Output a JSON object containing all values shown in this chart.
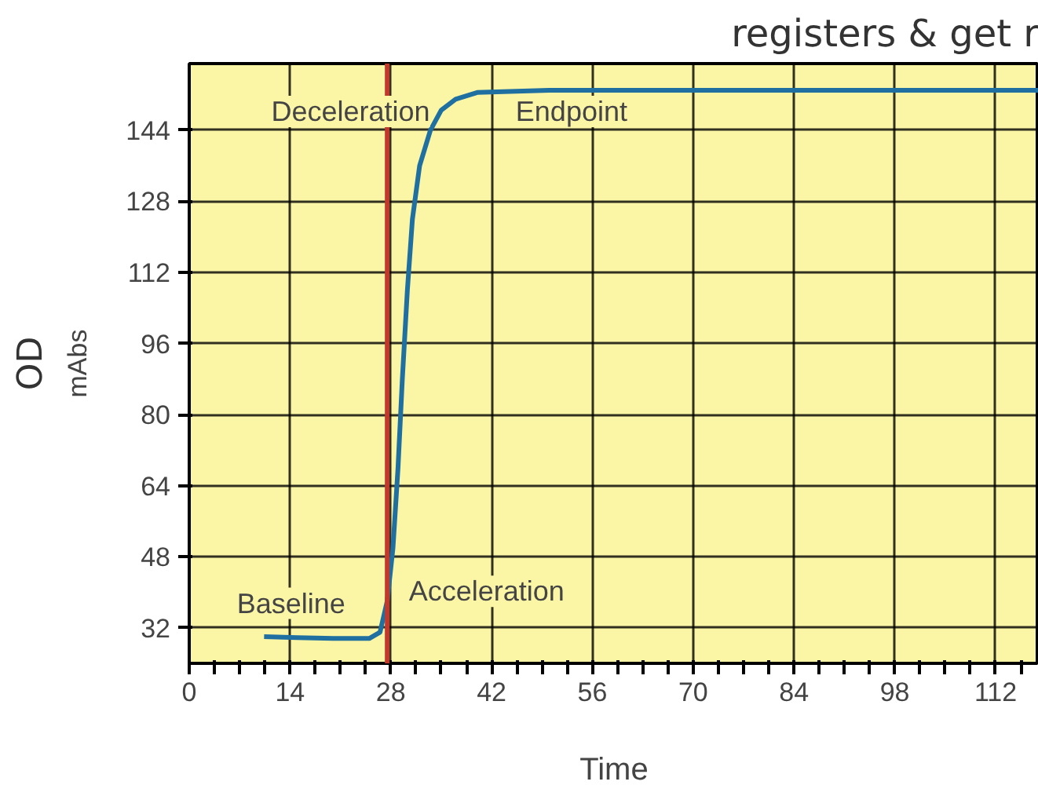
{
  "chart_data": {
    "type": "line",
    "xlabel": "Time",
    "ylabel": "mAbs",
    "x": [
      10.4,
      15,
      20,
      25,
      26.5,
      27.5,
      28.3,
      29,
      29.6,
      30.3,
      31,
      32,
      33.5,
      35,
      37,
      40,
      50,
      70,
      90,
      118
    ],
    "series": [
      {
        "color": "#1f6fa0",
        "values": [
          30,
          29.8,
          29.6,
          29.6,
          31,
          38,
          50,
          68,
          88,
          108,
          124,
          136,
          144,
          148.5,
          151,
          152.5,
          153,
          153,
          153,
          153
        ]
      }
    ],
    "xlim": [
      0,
      118
    ],
    "ylim": [
      24,
      159
    ],
    "xticks": [
      0,
      {
        "value": 3.5,
        "label": null
      },
      {
        "value": 7,
        "label": null
      },
      {
        "value": 10.5,
        "label": null
      },
      14,
      {
        "value": 17.5,
        "label": null
      },
      {
        "value": 21,
        "label": null
      },
      {
        "value": 24.5,
        "label": null
      },
      28,
      {
        "value": 31.5,
        "label": null
      },
      {
        "value": 35,
        "label": null
      },
      {
        "value": 38.5,
        "label": null
      },
      42,
      {
        "value": 45.5,
        "label": null
      },
      {
        "value": 49,
        "label": null
      },
      {
        "value": 52.5,
        "label": null
      },
      56,
      {
        "value": 59.5,
        "label": null
      },
      {
        "value": 63,
        "label": null
      },
      {
        "value": 66.5,
        "label": null
      },
      70,
      {
        "value": 73.5,
        "label": null
      },
      {
        "value": 77,
        "label": null
      },
      {
        "value": 80.5,
        "label": null
      },
      84,
      {
        "value": 87.5,
        "label": null
      },
      {
        "value": 91,
        "label": null
      },
      {
        "value": 94.5,
        "label": null
      },
      98,
      {
        "value": 101.5,
        "label": null
      },
      {
        "value": 105,
        "label": null
      },
      {
        "value": 108.5,
        "label": null
      },
      112,
      {
        "value": 115.5,
        "label": null
      }
    ],
    "yticks": [
      32,
      48,
      64,
      80,
      96,
      112,
      128,
      144
    ],
    "grid": true,
    "marker": "none",
    "line_style": "solid",
    "ref_lines": [
      {
        "axis": "x",
        "value": 27.5,
        "label": null,
        "color": "#c0392b"
      }
    ],
    "annotations": [
      "registers & get r",
      "OD",
      "Deceleration",
      "Endpoint",
      "Baseline",
      "Acceleration"
    ]
  }
}
